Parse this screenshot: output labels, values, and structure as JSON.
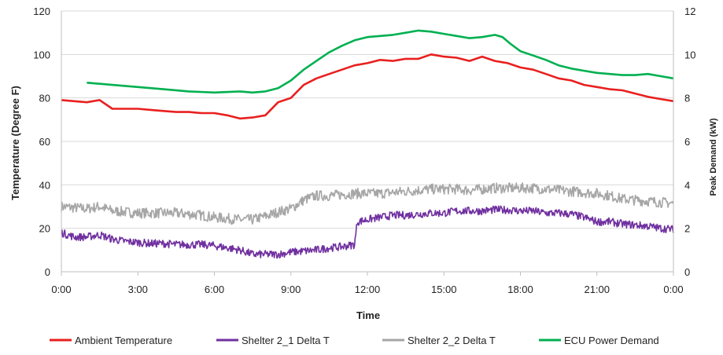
{
  "chart_data": {
    "type": "line",
    "xlabel": "Time",
    "ylabel_left": "Temperature (Degree F)",
    "ylabel_right": "Peak Demand (kW)",
    "x_ticks": [
      "0:00",
      "3:00",
      "6:00",
      "9:00",
      "12:00",
      "15:00",
      "18:00",
      "21:00",
      "0:00"
    ],
    "x_range_hours": [
      0,
      24
    ],
    "y_left_range": [
      0,
      120
    ],
    "y_left_ticks": [
      0,
      20,
      40,
      60,
      80,
      100,
      120
    ],
    "y_right_range": [
      0,
      12
    ],
    "y_right_ticks": [
      0,
      2,
      4,
      6,
      8,
      10,
      12
    ],
    "grid": "horizontal",
    "legend_position": "bottom",
    "series": [
      {
        "name": "Ambient Temperature",
        "axis": "left",
        "color": "#e8201f",
        "x": [
          0,
          0.5,
          1,
          1.5,
          2,
          2.5,
          3,
          3.5,
          4,
          4.5,
          5,
          5.5,
          6,
          6.5,
          7,
          7.5,
          8,
          8.5,
          9,
          9.5,
          10,
          10.5,
          11,
          11.5,
          12,
          12.5,
          13,
          13.5,
          14,
          14.5,
          15,
          15.5,
          16,
          16.5,
          17,
          17.5,
          18,
          18.5,
          19,
          19.5,
          20,
          20.5,
          21,
          21.5,
          22,
          22.5,
          23,
          23.5,
          24
        ],
        "y": [
          79,
          78.5,
          78,
          79,
          75,
          75,
          75,
          74.5,
          74,
          73.5,
          73.5,
          73,
          73,
          72,
          70.5,
          71,
          72,
          78,
          80,
          86,
          89,
          91,
          93,
          95,
          96,
          97.5,
          97,
          98,
          98,
          100,
          99,
          98.5,
          97,
          99,
          97,
          96,
          94,
          93,
          91,
          89,
          88,
          86,
          85,
          84,
          83.5,
          82,
          80.5,
          79.5,
          78.5
        ]
      },
      {
        "name": "Shelter 2_1 Delta T",
        "axis": "left",
        "color": "#7030a0",
        "x": [
          0,
          0.5,
          1,
          1.5,
          2,
          2.5,
          3,
          3.5,
          4,
          4.5,
          5,
          5.5,
          6,
          6.5,
          7,
          7.5,
          8,
          8.5,
          9,
          9.5,
          10,
          10.5,
          11,
          11.5,
          11.6,
          12,
          12.5,
          13,
          13.5,
          14,
          14.5,
          15,
          15.5,
          16,
          16.5,
          17,
          17.5,
          18,
          18.5,
          19,
          19.5,
          20,
          20.5,
          21,
          21.5,
          22,
          22.5,
          23,
          23.5,
          24
        ],
        "y": [
          18,
          16,
          16,
          17,
          15,
          14,
          13.5,
          13,
          13,
          12.5,
          12.5,
          12.5,
          12,
          11,
          10,
          8,
          8,
          8,
          9,
          9.5,
          10,
          11,
          11.5,
          12.5,
          23,
          24,
          25,
          26,
          26,
          26.5,
          27,
          27,
          28,
          28,
          28,
          28.5,
          28.5,
          28,
          28,
          27,
          27,
          26.5,
          25,
          23,
          23,
          22,
          21.5,
          21,
          20,
          19.5
        ],
        "noise": 1.8
      },
      {
        "name": "Shelter 2_2 Delta T",
        "axis": "left",
        "color": "#a6a6a6",
        "x": [
          0,
          0.5,
          1,
          1.5,
          2,
          2.5,
          3,
          3.5,
          4,
          4.5,
          5,
          5.5,
          6,
          6.5,
          7,
          7.5,
          8,
          8.5,
          9,
          9.5,
          10,
          10.5,
          11,
          11.5,
          12,
          12.5,
          13,
          13.5,
          14,
          14.5,
          15,
          15.5,
          16,
          16.5,
          17,
          17.5,
          18,
          18.5,
          19,
          19.5,
          20,
          20.5,
          21,
          21.5,
          22,
          22.5,
          23,
          23.5,
          24
        ],
        "y": [
          30,
          29.5,
          29,
          30,
          28,
          27.5,
          27,
          27,
          27,
          27,
          26.5,
          26,
          25,
          24.5,
          24,
          24,
          25.5,
          27.5,
          29,
          33,
          35,
          35,
          35.5,
          36,
          36,
          36,
          36.5,
          37,
          37.5,
          38,
          38,
          38,
          37.5,
          38,
          38.5,
          38.5,
          38.5,
          38.5,
          38,
          37.5,
          37,
          36.5,
          36,
          35,
          33.5,
          33,
          32.5,
          32,
          31.5
        ],
        "noise": 2.4
      },
      {
        "name": "ECU Power Demand",
        "axis": "right",
        "color": "#00b050",
        "x": [
          1.0,
          2,
          3,
          4,
          5,
          6,
          7,
          7.5,
          8,
          8.5,
          9,
          9.5,
          10,
          10.5,
          11,
          11.5,
          12,
          13,
          13.5,
          14,
          14.5,
          15,
          15.5,
          16,
          16.5,
          17,
          17.3,
          17.6,
          18,
          18.5,
          19,
          19.5,
          20,
          20.5,
          21,
          21.5,
          22,
          22.5,
          23,
          23.5,
          24
        ],
        "y": [
          8.7,
          8.6,
          8.5,
          8.4,
          8.3,
          8.25,
          8.3,
          8.25,
          8.3,
          8.45,
          8.8,
          9.3,
          9.7,
          10.1,
          10.4,
          10.65,
          10.8,
          10.9,
          11.0,
          11.1,
          11.05,
          10.95,
          10.85,
          10.75,
          10.8,
          10.9,
          10.8,
          10.5,
          10.15,
          9.95,
          9.75,
          9.5,
          9.35,
          9.25,
          9.15,
          9.1,
          9.05,
          9.05,
          9.1,
          9.0,
          8.9
        ]
      }
    ]
  }
}
